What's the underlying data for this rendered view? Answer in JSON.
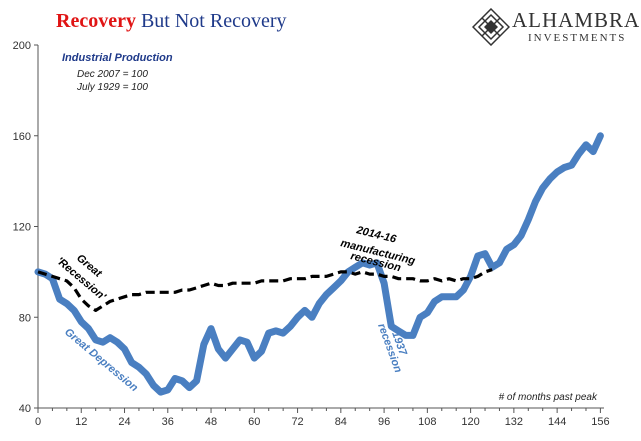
{
  "header": {
    "title_part1": "Recovery",
    "title_part2": " But Not Recovery"
  },
  "logo": {
    "name": "ALHAMBRA",
    "sub": "INVESTMENTS"
  },
  "colors": {
    "depression": "#4a7fc1",
    "great_recession": "#000000",
    "title_red": "#e01414",
    "title_blue": "#1f3a8a",
    "legend_text": "#1f3a8a"
  },
  "chart_data": {
    "type": "line",
    "title": "Recovery But Not Recovery",
    "xlabel": "# of months past peak",
    "ylabel": "",
    "xlim": [
      0,
      157
    ],
    "ylim": [
      40,
      200
    ],
    "x_ticks": [
      0,
      12,
      24,
      36,
      48,
      60,
      72,
      84,
      96,
      108,
      120,
      132,
      144,
      156
    ],
    "y_ticks": [
      40,
      80,
      120,
      160,
      200
    ],
    "grid": false,
    "legend": {
      "position": "top-left",
      "title": "Industrial Production",
      "lines": [
        "Dec 2007 = 100",
        "July 1929 = 100"
      ]
    },
    "series": [
      {
        "name": "Great Depression",
        "style": "solid",
        "x": [
          0,
          2,
          4,
          6,
          8,
          10,
          12,
          14,
          16,
          18,
          20,
          22,
          24,
          26,
          28,
          30,
          32,
          34,
          36,
          38,
          40,
          42,
          44,
          46,
          48,
          50,
          52,
          54,
          56,
          58,
          60,
          62,
          64,
          66,
          68,
          70,
          72,
          74,
          76,
          78,
          80,
          82,
          84,
          86,
          88,
          90,
          92,
          94,
          96,
          98,
          100,
          102,
          104,
          106,
          108,
          110,
          112,
          114,
          116,
          118,
          120,
          122,
          124,
          126,
          128,
          130,
          132,
          134,
          136,
          138,
          140,
          142,
          144,
          146,
          148,
          150,
          152,
          154,
          156
        ],
        "values": [
          100,
          99,
          97,
          88,
          86,
          83,
          78,
          75,
          70,
          69,
          71,
          69,
          66,
          60,
          58,
          55,
          50,
          47,
          48,
          53,
          52,
          49,
          52,
          68,
          75,
          66,
          62,
          66,
          70,
          69,
          62,
          65,
          73,
          74,
          73,
          76,
          80,
          83,
          80,
          86,
          90,
          93,
          96,
          100,
          102,
          104,
          103,
          104,
          95,
          76,
          74,
          72,
          72,
          80,
          82,
          87,
          89,
          89,
          89,
          92,
          98,
          107,
          108,
          102,
          104,
          110,
          112,
          116,
          123,
          131,
          137,
          141,
          144,
          146,
          147,
          152,
          156,
          153,
          160
        ]
      },
      {
        "name": "Great 'Recession'",
        "style": "dashed",
        "x": [
          0,
          2,
          4,
          6,
          8,
          10,
          12,
          14,
          16,
          18,
          20,
          22,
          24,
          26,
          28,
          30,
          32,
          34,
          36,
          38,
          40,
          42,
          44,
          46,
          48,
          50,
          52,
          54,
          56,
          58,
          60,
          62,
          64,
          66,
          68,
          70,
          72,
          74,
          76,
          78,
          80,
          82,
          84,
          86,
          88,
          90,
          92,
          94,
          96,
          98,
          100,
          102,
          104,
          106,
          108,
          110,
          112,
          114,
          116,
          118,
          120,
          122,
          124,
          126
        ],
        "values": [
          100,
          99,
          98,
          97,
          96,
          93,
          88,
          85,
          83,
          85,
          87,
          88,
          89,
          90,
          90,
          91,
          91,
          91,
          91,
          91,
          92,
          92,
          93,
          94,
          95,
          94,
          94,
          95,
          95,
          95,
          95,
          96,
          96,
          96,
          96,
          97,
          97,
          97,
          98,
          98,
          98,
          99,
          100,
          100,
          99,
          100,
          99,
          99,
          98,
          98,
          97,
          97,
          97,
          96,
          96,
          97,
          96,
          97,
          96,
          97,
          97,
          98,
          100,
          101
        ]
      }
    ],
    "annotations": [
      {
        "text": "Great",
        "series": "Great 'Recession'"
      },
      {
        "text": "'Recession'",
        "series": "Great 'Recession'"
      },
      {
        "text": "Great Depression",
        "series": "Great Depression"
      },
      {
        "text": "2014-16",
        "series": "Great 'Recession'"
      },
      {
        "text": "manufacturing",
        "series": "Great 'Recession'"
      },
      {
        "text": "recession",
        "series": "Great 'Recession'"
      },
      {
        "text": "1937",
        "series": "Great Depression"
      },
      {
        "text": "recession",
        "series": "Great Depression"
      }
    ]
  }
}
